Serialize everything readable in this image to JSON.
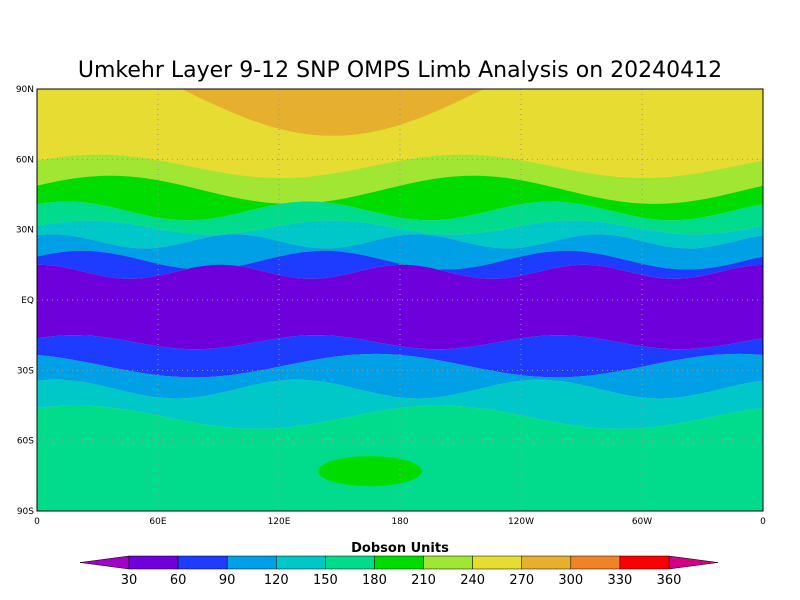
{
  "title": "Umkehr Layer 9-12 SNP OMPS Limb Analysis on 20240412",
  "lat_ticks": [
    "90N",
    "60N",
    "30N",
    "EQ",
    "30S",
    "60S",
    "90S"
  ],
  "lon_ticks": [
    "0",
    "60E",
    "120E",
    "180",
    "120W",
    "60W",
    "0"
  ],
  "colorbar": {
    "label": "Dobson Units",
    "levels": [
      30,
      60,
      90,
      120,
      150,
      180,
      210,
      240,
      270,
      300,
      330,
      360
    ],
    "colors": [
      "#a000c8",
      "#6e00dc",
      "#1e3cff",
      "#00a0e6",
      "#00c8c8",
      "#00dc8c",
      "#00dc00",
      "#a0e632",
      "#e6dc32",
      "#e6af2d",
      "#f08228",
      "#fa0000",
      "#d20082"
    ]
  }
}
